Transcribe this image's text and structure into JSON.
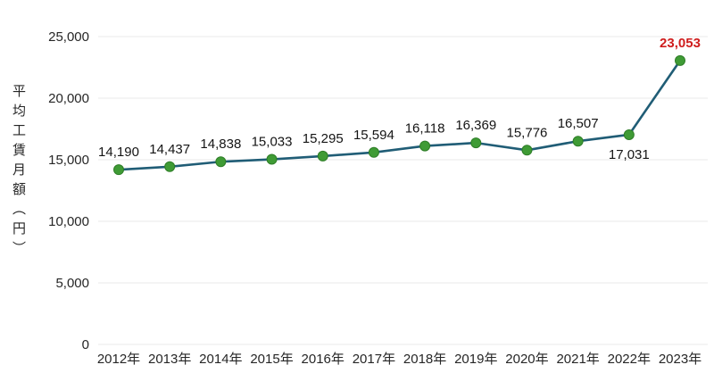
{
  "chart_data": {
    "type": "line",
    "title": "",
    "xlabel": "",
    "ylabel": "平均工賃月額（円）",
    "categories": [
      "2012年",
      "2013年",
      "2014年",
      "2015年",
      "2016年",
      "2017年",
      "2018年",
      "2019年",
      "2020年",
      "2021年",
      "2022年",
      "2023年"
    ],
    "values": [
      14190,
      14437,
      14838,
      15033,
      15295,
      15594,
      16118,
      16369,
      15776,
      16507,
      17031,
      23053
    ],
    "value_labels": [
      "14,190",
      "14,437",
      "14,838",
      "15,033",
      "15,295",
      "15,594",
      "16,118",
      "16,369",
      "15,776",
      "16,507",
      "17,031",
      "23,053"
    ],
    "ylim": [
      0,
      25000
    ],
    "ytick_values": [
      0,
      5000,
      10000,
      15000,
      20000,
      25000
    ],
    "ytick_labels": [
      "0",
      "5,000",
      "10,000",
      "15,000",
      "20,000",
      "25,000"
    ],
    "grid": "horizontal",
    "legend_position": "none",
    "highlight_index": 11,
    "label_below_indices": [
      10
    ],
    "colors": {
      "line": "#205d76",
      "marker_fill": "#3f9b35",
      "marker_stroke": "#2e7d27",
      "highlight_text": "#cf1d1d",
      "gridline": "#eaeaea",
      "text": "#262626"
    }
  }
}
